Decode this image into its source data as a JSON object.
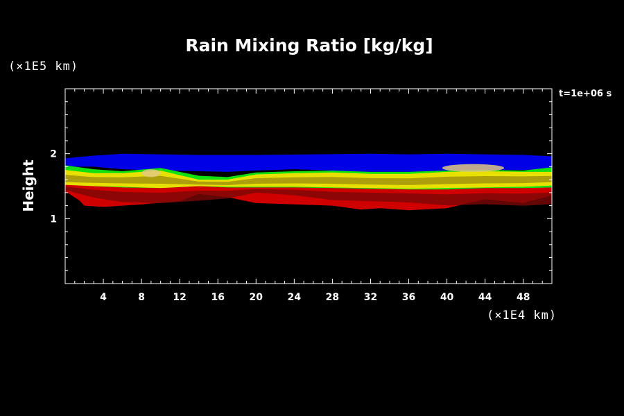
{
  "chart_data": {
    "type": "heatmap",
    "title": "Rain Mixing Ratio [kg/kg]",
    "ylabel": "Height",
    "y_unit": "(×1E5 km)",
    "x_unit": "(×1E4 km)",
    "time_label": "t=1e+06 s",
    "xlim": [
      0,
      51
    ],
    "ylim": [
      0,
      3
    ],
    "x_ticks": [
      "4",
      "8",
      "12",
      "16",
      "20",
      "24",
      "28",
      "32",
      "36",
      "40",
      "44",
      "48"
    ],
    "y_ticks": [
      "1",
      "2"
    ],
    "x_tick_values": [
      4,
      8,
      12,
      16,
      20,
      24,
      28,
      32,
      36,
      40,
      44,
      48
    ],
    "y_tick_values": [
      1,
      2
    ],
    "colors": {
      "background": "#000000",
      "blue": "#0000e6",
      "cyan": "#30d0c8",
      "green": "#10e010",
      "yellow": "#e8e000",
      "olive": "#9a8a10",
      "tan": "#e0c880",
      "red": "#d00000",
      "dark_red": "#7a0808"
    },
    "layers": [
      {
        "name": "blue",
        "color": "#0000e6",
        "top": [
          [
            0,
            1.93
          ],
          [
            3,
            1.97
          ],
          [
            6,
            2.0
          ],
          [
            10,
            1.99
          ],
          [
            14,
            1.98
          ],
          [
            20,
            1.98
          ],
          [
            26,
            1.99
          ],
          [
            32,
            2.0
          ],
          [
            36,
            1.99
          ],
          [
            40,
            2.0
          ],
          [
            44,
            1.99
          ],
          [
            48,
            1.98
          ],
          [
            51,
            1.96
          ]
        ],
        "bottom": [
          [
            0,
            1.8
          ],
          [
            3,
            1.8
          ],
          [
            6,
            1.76
          ],
          [
            10,
            1.74
          ],
          [
            14,
            1.73
          ],
          [
            17,
            1.72
          ],
          [
            20,
            1.74
          ],
          [
            24,
            1.76
          ],
          [
            28,
            1.74
          ],
          [
            32,
            1.72
          ],
          [
            36,
            1.72
          ],
          [
            40,
            1.74
          ],
          [
            44,
            1.75
          ],
          [
            48,
            1.75
          ],
          [
            51,
            1.76
          ]
        ]
      },
      {
        "name": "green",
        "color": "#10e010",
        "top": [
          [
            0,
            1.82
          ],
          [
            3,
            1.76
          ],
          [
            6,
            1.73
          ],
          [
            10,
            1.78
          ],
          [
            14,
            1.66
          ],
          [
            17,
            1.64
          ],
          [
            20,
            1.71
          ],
          [
            24,
            1.73
          ],
          [
            28,
            1.74
          ],
          [
            32,
            1.72
          ],
          [
            36,
            1.72
          ],
          [
            40,
            1.74
          ],
          [
            44,
            1.75
          ],
          [
            48,
            1.74
          ],
          [
            51,
            1.79
          ]
        ],
        "bottom": [
          [
            0,
            1.48
          ],
          [
            3,
            1.48
          ],
          [
            6,
            1.46
          ],
          [
            10,
            1.44
          ],
          [
            14,
            1.48
          ],
          [
            17,
            1.47
          ],
          [
            20,
            1.47
          ],
          [
            24,
            1.47
          ],
          [
            28,
            1.45
          ],
          [
            32,
            1.45
          ],
          [
            36,
            1.44
          ],
          [
            40,
            1.44
          ],
          [
            44,
            1.45
          ],
          [
            48,
            1.46
          ],
          [
            51,
            1.48
          ]
        ]
      },
      {
        "name": "yellow",
        "color": "#e8e000",
        "top": [
          [
            0,
            1.75
          ],
          [
            3,
            1.7
          ],
          [
            6,
            1.7
          ],
          [
            10,
            1.74
          ],
          [
            14,
            1.6
          ],
          [
            17,
            1.6
          ],
          [
            20,
            1.68
          ],
          [
            24,
            1.7
          ],
          [
            28,
            1.71
          ],
          [
            32,
            1.69
          ],
          [
            36,
            1.69
          ],
          [
            40,
            1.72
          ],
          [
            44,
            1.73
          ],
          [
            48,
            1.72
          ],
          [
            51,
            1.72
          ]
        ],
        "bottom": [
          [
            0,
            1.5
          ],
          [
            3,
            1.5
          ],
          [
            6,
            1.49
          ],
          [
            10,
            1.47
          ],
          [
            14,
            1.5
          ],
          [
            17,
            1.49
          ],
          [
            20,
            1.49
          ],
          [
            24,
            1.49
          ],
          [
            28,
            1.48
          ],
          [
            32,
            1.47
          ],
          [
            36,
            1.46
          ],
          [
            40,
            1.47
          ],
          [
            44,
            1.48
          ],
          [
            48,
            1.49
          ],
          [
            51,
            1.51
          ]
        ]
      },
      {
        "name": "red",
        "color": "#d00000",
        "top": [
          [
            0,
            1.52
          ],
          [
            3,
            1.5
          ],
          [
            6,
            1.48
          ],
          [
            10,
            1.47
          ],
          [
            14,
            1.5
          ],
          [
            17,
            1.48
          ],
          [
            20,
            1.48
          ],
          [
            24,
            1.48
          ],
          [
            28,
            1.47
          ],
          [
            32,
            1.46
          ],
          [
            36,
            1.45
          ],
          [
            40,
            1.45
          ],
          [
            44,
            1.47
          ],
          [
            48,
            1.47
          ],
          [
            51,
            1.48
          ]
        ],
        "bottom": [
          [
            0,
            1.42
          ],
          [
            1.5,
            1.28
          ],
          [
            2,
            1.2
          ],
          [
            4,
            1.18
          ],
          [
            8,
            1.22
          ],
          [
            12,
            1.27
          ],
          [
            14,
            1.38
          ],
          [
            17,
            1.33
          ],
          [
            20,
            1.24
          ],
          [
            24,
            1.22
          ],
          [
            28,
            1.2
          ],
          [
            31,
            1.14
          ],
          [
            33,
            1.16
          ],
          [
            36,
            1.13
          ],
          [
            40,
            1.16
          ],
          [
            44,
            1.3
          ],
          [
            48,
            1.24
          ],
          [
            51,
            1.36
          ]
        ]
      }
    ]
  }
}
